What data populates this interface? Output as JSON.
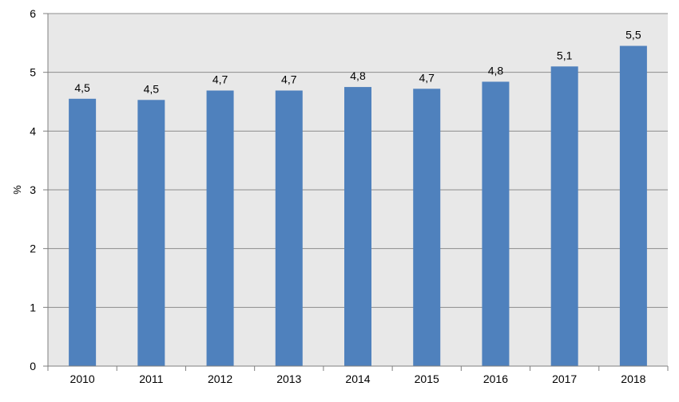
{
  "chart_data": {
    "type": "bar",
    "title": "",
    "xlabel": "",
    "ylabel": "%",
    "categories": [
      "2010",
      "2011",
      "2012",
      "2013",
      "2014",
      "2015",
      "2016",
      "2017",
      "2018"
    ],
    "values": [
      4.55,
      4.53,
      4.69,
      4.69,
      4.75,
      4.72,
      4.84,
      5.1,
      5.45
    ],
    "data_labels": [
      "4,5",
      "4,5",
      "4,7",
      "4,7",
      "4,8",
      "4,7",
      "4,8",
      "5,1",
      "5,5"
    ],
    "ylim": [
      0,
      6
    ],
    "yticks": [
      "0",
      "1",
      "2",
      "3",
      "4",
      "5",
      "6"
    ],
    "grid": true,
    "legend": "none",
    "colors": {
      "bar": "#4f81bd",
      "plot_background": "#e8e8e8",
      "gridline": "#8c8c8c",
      "axis": "#7f7f7f"
    }
  }
}
